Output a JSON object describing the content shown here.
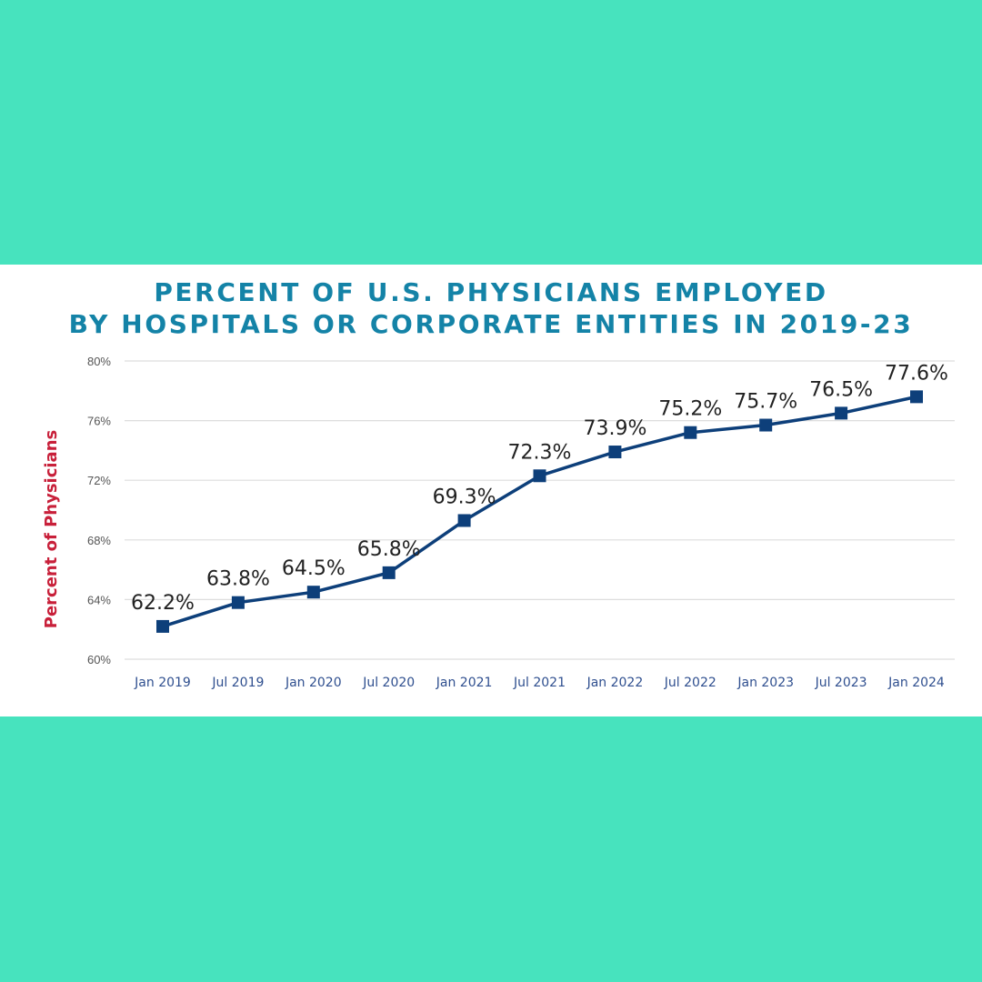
{
  "colors": {
    "background": "#47E3BE",
    "panel": "#FFFFFF",
    "title": "#1483A7",
    "series": "#0D3F7A",
    "ylabel": "#C8203A",
    "grid": "#DDDDDD"
  },
  "chart_data": {
    "type": "line",
    "title_lines": [
      "PERCENT OF U.S. PHYSICIANS EMPLOYED",
      "BY HOSPITALS OR CORPORATE ENTITIES IN 2019-23"
    ],
    "xlabel": "",
    "ylabel": "Percent of Physicians",
    "ylim": [
      60,
      80
    ],
    "yticks": [
      60,
      64,
      68,
      72,
      76,
      80
    ],
    "ytick_labels": [
      "60%",
      "64%",
      "68%",
      "72%",
      "76%",
      "80%"
    ],
    "grid": true,
    "categories": [
      "Jan 2019",
      "Jul 2019",
      "Jan 2020",
      "Jul 2020",
      "Jan 2021",
      "Jul 2021",
      "Jan 2022",
      "Jul 2022",
      "Jan 2023",
      "Jul 2023",
      "Jan 2024"
    ],
    "series": [
      {
        "values": [
          62.2,
          63.8,
          64.5,
          65.8,
          69.3,
          72.3,
          73.9,
          75.2,
          75.7,
          76.5,
          77.6
        ],
        "labels": [
          "62.2%",
          "63.8%",
          "64.5%",
          "65.8%",
          "69.3%",
          "72.3%",
          "73.9%",
          "75.2%",
          "75.7%",
          "76.5%",
          "77.6%"
        ]
      }
    ]
  }
}
